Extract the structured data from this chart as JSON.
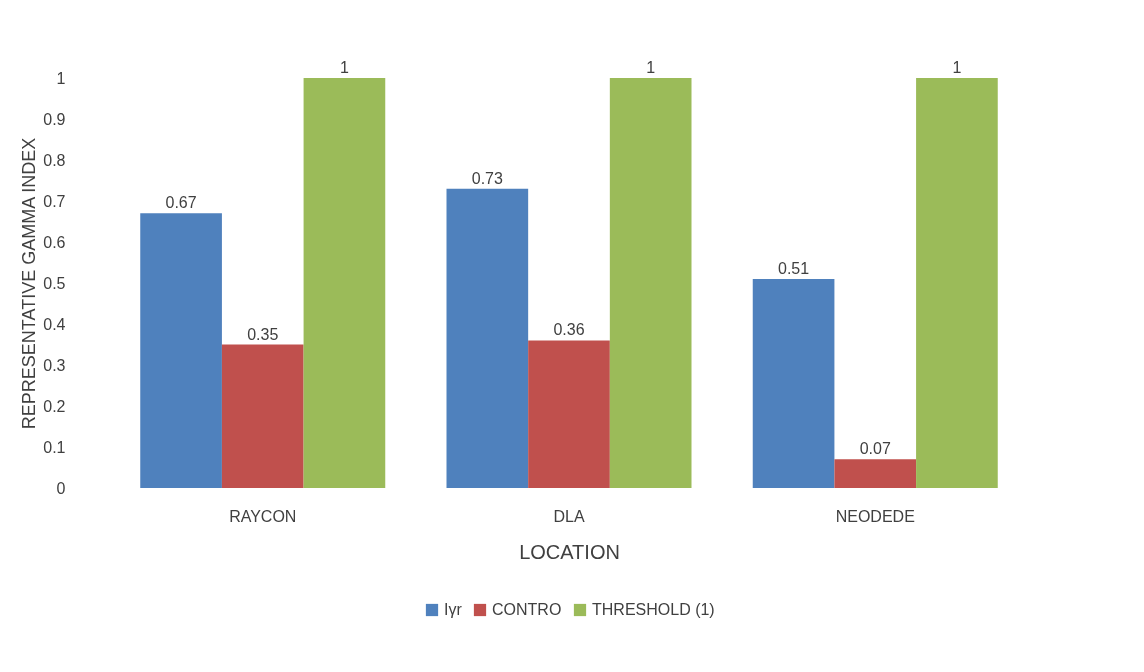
{
  "chart_data": {
    "type": "bar",
    "xlabel": "LOCATION",
    "ylabel": "REPRESENTATIVE GAMMA INDEX",
    "categories": [
      "RAYCON",
      "DLA",
      "NEODEDE"
    ],
    "series": [
      {
        "name": "Iγr",
        "color": "#4f81bd",
        "values": [
          0.67,
          0.73,
          0.51
        ]
      },
      {
        "name": "CONTRO",
        "color": "#c0504d",
        "values": [
          0.35,
          0.36,
          0.07
        ]
      },
      {
        "name": "THRESHOLD (1)",
        "color": "#9bbb59",
        "values": [
          1,
          1,
          1
        ]
      }
    ],
    "ylim": [
      0,
      1
    ],
    "yticks": [
      0,
      0.1,
      0.2,
      0.3,
      0.4,
      0.5,
      0.6,
      0.7,
      0.8,
      0.9,
      1
    ],
    "data_labels": true,
    "legend": "bottom"
  }
}
